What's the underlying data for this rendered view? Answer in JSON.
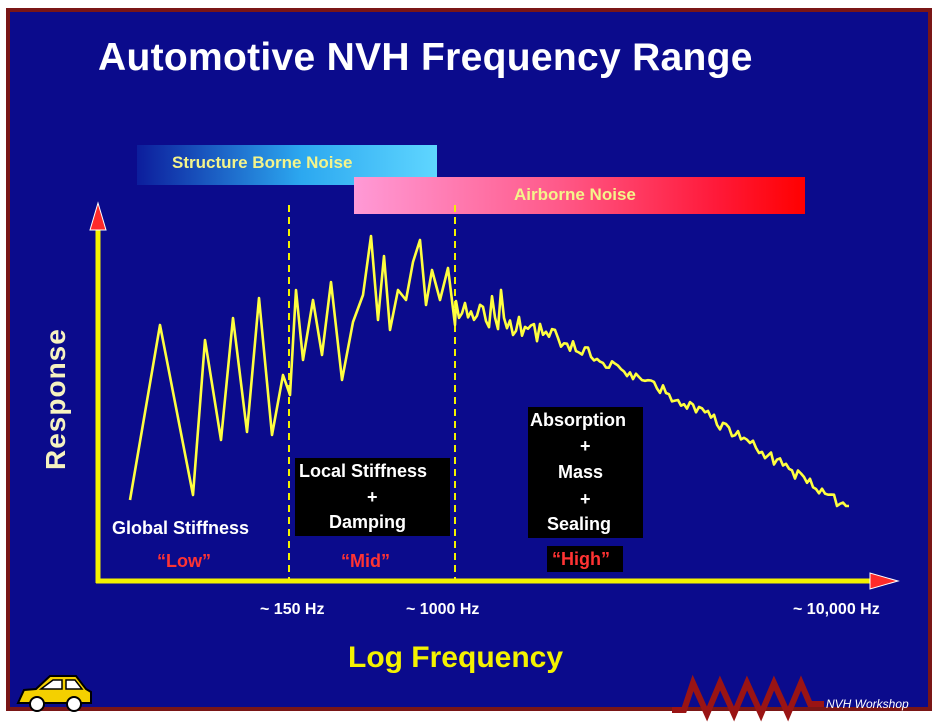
{
  "title": "Automotive NVH Frequency Range",
  "bands": {
    "structure": "Structure Borne Noise",
    "airborne": "Airborne Noise"
  },
  "axes": {
    "y_label": "Response",
    "x_label": "Log Frequency",
    "ticks": [
      "~ 150 Hz",
      "~ 1000 Hz",
      "~ 10,000 Hz"
    ]
  },
  "regions": {
    "low": {
      "label": "Global Stiffness",
      "tag": "“Low”"
    },
    "mid": {
      "line1": "Local Stiffness",
      "plus": "+",
      "line2": "Damping",
      "tag": "“Mid”"
    },
    "high": {
      "line1": "Absorption",
      "plus1": "+",
      "line2": "Mass",
      "plus2": "+",
      "line3": "Sealing",
      "tag": "“High”"
    }
  },
  "footer": "NVH Workshop",
  "colors": {
    "background": "#0b0b8c",
    "frame": "#7a1616",
    "axis": "#f4f200",
    "curve": "#ffff40",
    "arrow": "#ff2a2a",
    "region_tag": "#ff3333"
  },
  "icons": [
    "car-icon",
    "spring-icon"
  ]
}
